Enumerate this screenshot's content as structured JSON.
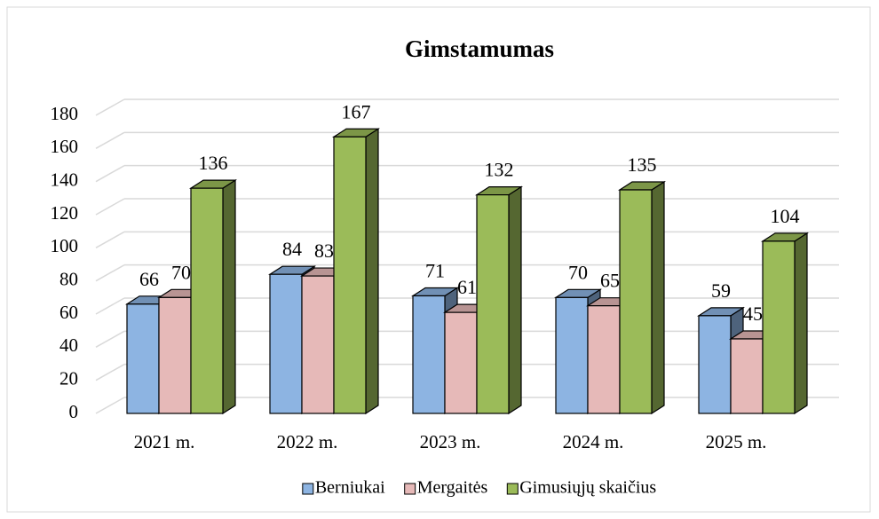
{
  "chart_data": {
    "type": "bar3d",
    "title": "Gimstamumas",
    "categories": [
      "2021 m.",
      "2022 m.",
      "2023 m.",
      "2024 m.",
      "2025 m."
    ],
    "series": [
      {
        "name": "Berniukai",
        "color": "#8db4e2",
        "values": [
          66,
          84,
          71,
          70,
          59
        ]
      },
      {
        "name": "Mergaitės",
        "color": "#e6b9b8",
        "values": [
          70,
          83,
          61,
          65,
          45
        ]
      },
      {
        "name": "Gimusiųjų skaičius",
        "color": "#9bbb59",
        "values": [
          136,
          167,
          132,
          135,
          104
        ]
      }
    ],
    "ylim": [
      0,
      180
    ],
    "yticks": [
      0,
      20,
      40,
      60,
      80,
      100,
      120,
      140,
      160,
      180
    ],
    "grid": true,
    "legend": "bottom"
  }
}
